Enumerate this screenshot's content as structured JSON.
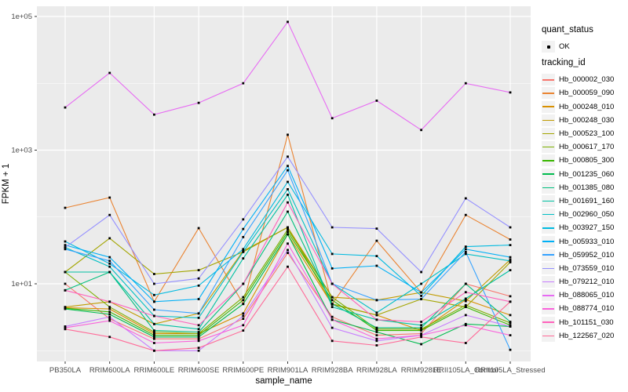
{
  "chart_data": {
    "type": "line",
    "title": "",
    "xlabel": "sample_name",
    "ylabel": "FPKM + 1",
    "y_scale": "log10",
    "ylim_log": [
      0,
      5.3
    ],
    "y_ticks": [
      {
        "label": "1e+01",
        "value": 10
      },
      {
        "label": "1e+03",
        "value": 1000
      },
      {
        "label": "1e+05",
        "value": 100000
      }
    ],
    "y_minor_values": [
      1,
      100,
      10000
    ],
    "grid": "on",
    "legend_position": "right",
    "categories": [
      "PB350LA",
      "RRIM600LA",
      "RRIM600LE",
      "RRIM600SE",
      "RRIM600PE",
      "RRIM901LA",
      "RRIM928BA",
      "RRIM928LA",
      "RRIM928LE",
      "RRII105LA_Control",
      "RRII105LA_Stressed"
    ],
    "point_shape": "small-black-square",
    "series": [
      {
        "name": "Hb_000002_030",
        "color": "#F8766D",
        "values": [
          10,
          3.0,
          1.5,
          1.5,
          3.0,
          29,
          3.2,
          1.7,
          1.8,
          10,
          6.5
        ]
      },
      {
        "name": "Hb_000059_090",
        "color": "#EA8331",
        "values": [
          137,
          195,
          5.4,
          68,
          5.0,
          1700,
          5.0,
          44,
          7.4,
          107,
          46
        ]
      },
      {
        "name": "Hb_000248_010",
        "color": "#D89000",
        "values": [
          4.4,
          4.2,
          1.8,
          1.8,
          3.6,
          55,
          4.9,
          3.4,
          2.0,
          5.8,
          3.4
        ]
      },
      {
        "name": "Hb_000248_030",
        "color": "#C09B00",
        "values": [
          4.5,
          5.4,
          2.5,
          3.6,
          31,
          70,
          6.3,
          5.7,
          7.4,
          5.5,
          23
        ]
      },
      {
        "name": "Hb_000523_100",
        "color": "#A3A500",
        "values": [
          15,
          48,
          14,
          16,
          30,
          70,
          5.0,
          3.4,
          5.9,
          4.5,
          21
        ]
      },
      {
        "name": "Hb_000617_170",
        "color": "#7CAE00",
        "values": [
          15,
          4.5,
          1.9,
          1.8,
          6.3,
          65,
          6.3,
          2.1,
          2.1,
          4.8,
          2.6
        ]
      },
      {
        "name": "Hb_000805_300",
        "color": "#39B600",
        "values": [
          4.3,
          3.8,
          1.7,
          1.7,
          5.7,
          60,
          5.7,
          2.0,
          2.0,
          4.5,
          2.4
        ]
      },
      {
        "name": "Hb_001235_060",
        "color": "#00BB4E",
        "values": [
          4.2,
          3.5,
          1.6,
          1.6,
          5.0,
          55,
          2.9,
          1.9,
          1.25,
          2.5,
          2.3
        ]
      },
      {
        "name": "Hb_001385_080",
        "color": "#00BF7D",
        "values": [
          8.0,
          15,
          2.0,
          1.9,
          10,
          120,
          5.0,
          2.2,
          2.2,
          10,
          2.7
        ]
      },
      {
        "name": "Hb_001691_160",
        "color": "#00C1A3",
        "values": [
          15,
          15,
          2.5,
          2.1,
          24,
          215,
          4.5,
          2.9,
          2.4,
          6.0,
          16
        ]
      },
      {
        "name": "Hb_002960_050",
        "color": "#00BFC4",
        "values": [
          35,
          18,
          3.3,
          3.1,
          30,
          260,
          10,
          3.7,
          10,
          28,
          22
        ]
      },
      {
        "name": "Hb_003927_150",
        "color": "#00BAE0",
        "values": [
          43,
          20,
          6.8,
          9.4,
          33,
          335,
          28,
          26,
          6.6,
          36,
          38
        ]
      },
      {
        "name": "Hb_005933_010",
        "color": "#00B0F6",
        "values": [
          38,
          25,
          5.4,
          5.9,
          66,
          580,
          17,
          18.6,
          7.4,
          33,
          25
        ]
      },
      {
        "name": "Hb_059952_010",
        "color": "#35A2FF",
        "values": [
          33,
          22,
          4.1,
          3.6,
          50,
          500,
          10,
          5.7,
          5.9,
          30,
          1.03
        ]
      },
      {
        "name": "Hb_073559_010",
        "color": "#9590FF",
        "values": [
          35,
          107,
          10,
          12,
          92,
          800,
          70,
          67,
          15,
          190,
          70
        ]
      },
      {
        "name": "Hb_079212_010",
        "color": "#C77CFF",
        "values": [
          2.3,
          3.2,
          1.0,
          1.0,
          3.3,
          32,
          2.2,
          1.4,
          1.7,
          3.4,
          2.3
        ]
      },
      {
        "name": "Hb_088065_010",
        "color": "#E76BF3",
        "values": [
          4350,
          14300,
          3400,
          5100,
          10000,
          83000,
          3000,
          5500,
          2000,
          10000,
          7300
        ]
      },
      {
        "name": "Hb_088774_010",
        "color": "#FA62DB",
        "values": [
          2.2,
          2.8,
          1.3,
          1.4,
          2.4,
          40,
          2.9,
          1.5,
          1.7,
          2.4,
          1.7
        ]
      },
      {
        "name": "Hb_101151_030",
        "color": "#FF62BC",
        "values": [
          8.0,
          5.4,
          3.3,
          2.4,
          10,
          165,
          10,
          2.9,
          2.7,
          7.5,
          5.4
        ]
      },
      {
        "name": "Hb_122567_020",
        "color": "#FF6A98",
        "values": [
          2.1,
          1.6,
          1.0,
          1.1,
          2.0,
          18,
          1.4,
          1.2,
          1.6,
          1.3,
          5.4
        ]
      }
    ],
    "legend": {
      "quant_status_title": "quant_status",
      "quant_status_items": [
        {
          "label": "OK"
        }
      ],
      "tracking_id_title": "tracking_id"
    },
    "colors": {
      "panel_bg": "#EBEBEB",
      "grid": "#FFFFFF",
      "tick_label": "#4D4D4D",
      "tick_mark": "#333333",
      "axis_title": "#000000",
      "legend_key_bg": "#F2F2F2",
      "point": "#000000"
    }
  }
}
